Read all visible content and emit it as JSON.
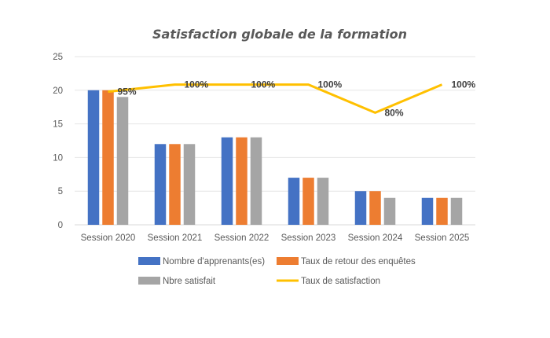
{
  "chart_data": {
    "type": "bar",
    "title": "Satisfaction globale de la formation",
    "categories": [
      "Session 2020",
      "Session 2021",
      "Session 2022",
      "Session 2023",
      "Session 2024",
      "Session 2025"
    ],
    "ylim": [
      0,
      25
    ],
    "yticks": [
      0,
      5,
      10,
      15,
      20,
      25
    ],
    "ytick_labels": [
      "0",
      "5",
      "10",
      "15",
      "20",
      "25"
    ],
    "y2lim": [
      0,
      120
    ],
    "grid": true,
    "legend_position": "bottom",
    "series": [
      {
        "name": "Nombre  d'apprenants(es)",
        "type": "bar",
        "color": "#4472C4",
        "values": [
          20,
          12,
          13,
          7,
          5,
          4
        ]
      },
      {
        "name": "Taux de retour des enquêtes",
        "type": "bar",
        "color": "#ED7D31",
        "values": [
          20,
          12,
          13,
          7,
          5,
          4
        ]
      },
      {
        "name": "Nbre satisfait",
        "type": "bar",
        "color": "#A5A5A5",
        "values": [
          19,
          12,
          13,
          7,
          4,
          4
        ]
      },
      {
        "name": "Taux de satisfaction",
        "type": "line",
        "axis": "secondary",
        "color": "#FFC000",
        "values": [
          95,
          100,
          100,
          100,
          80,
          100
        ],
        "labels": [
          "95%",
          "100%",
          "100%",
          "100%",
          "80%",
          "100%"
        ]
      }
    ]
  }
}
